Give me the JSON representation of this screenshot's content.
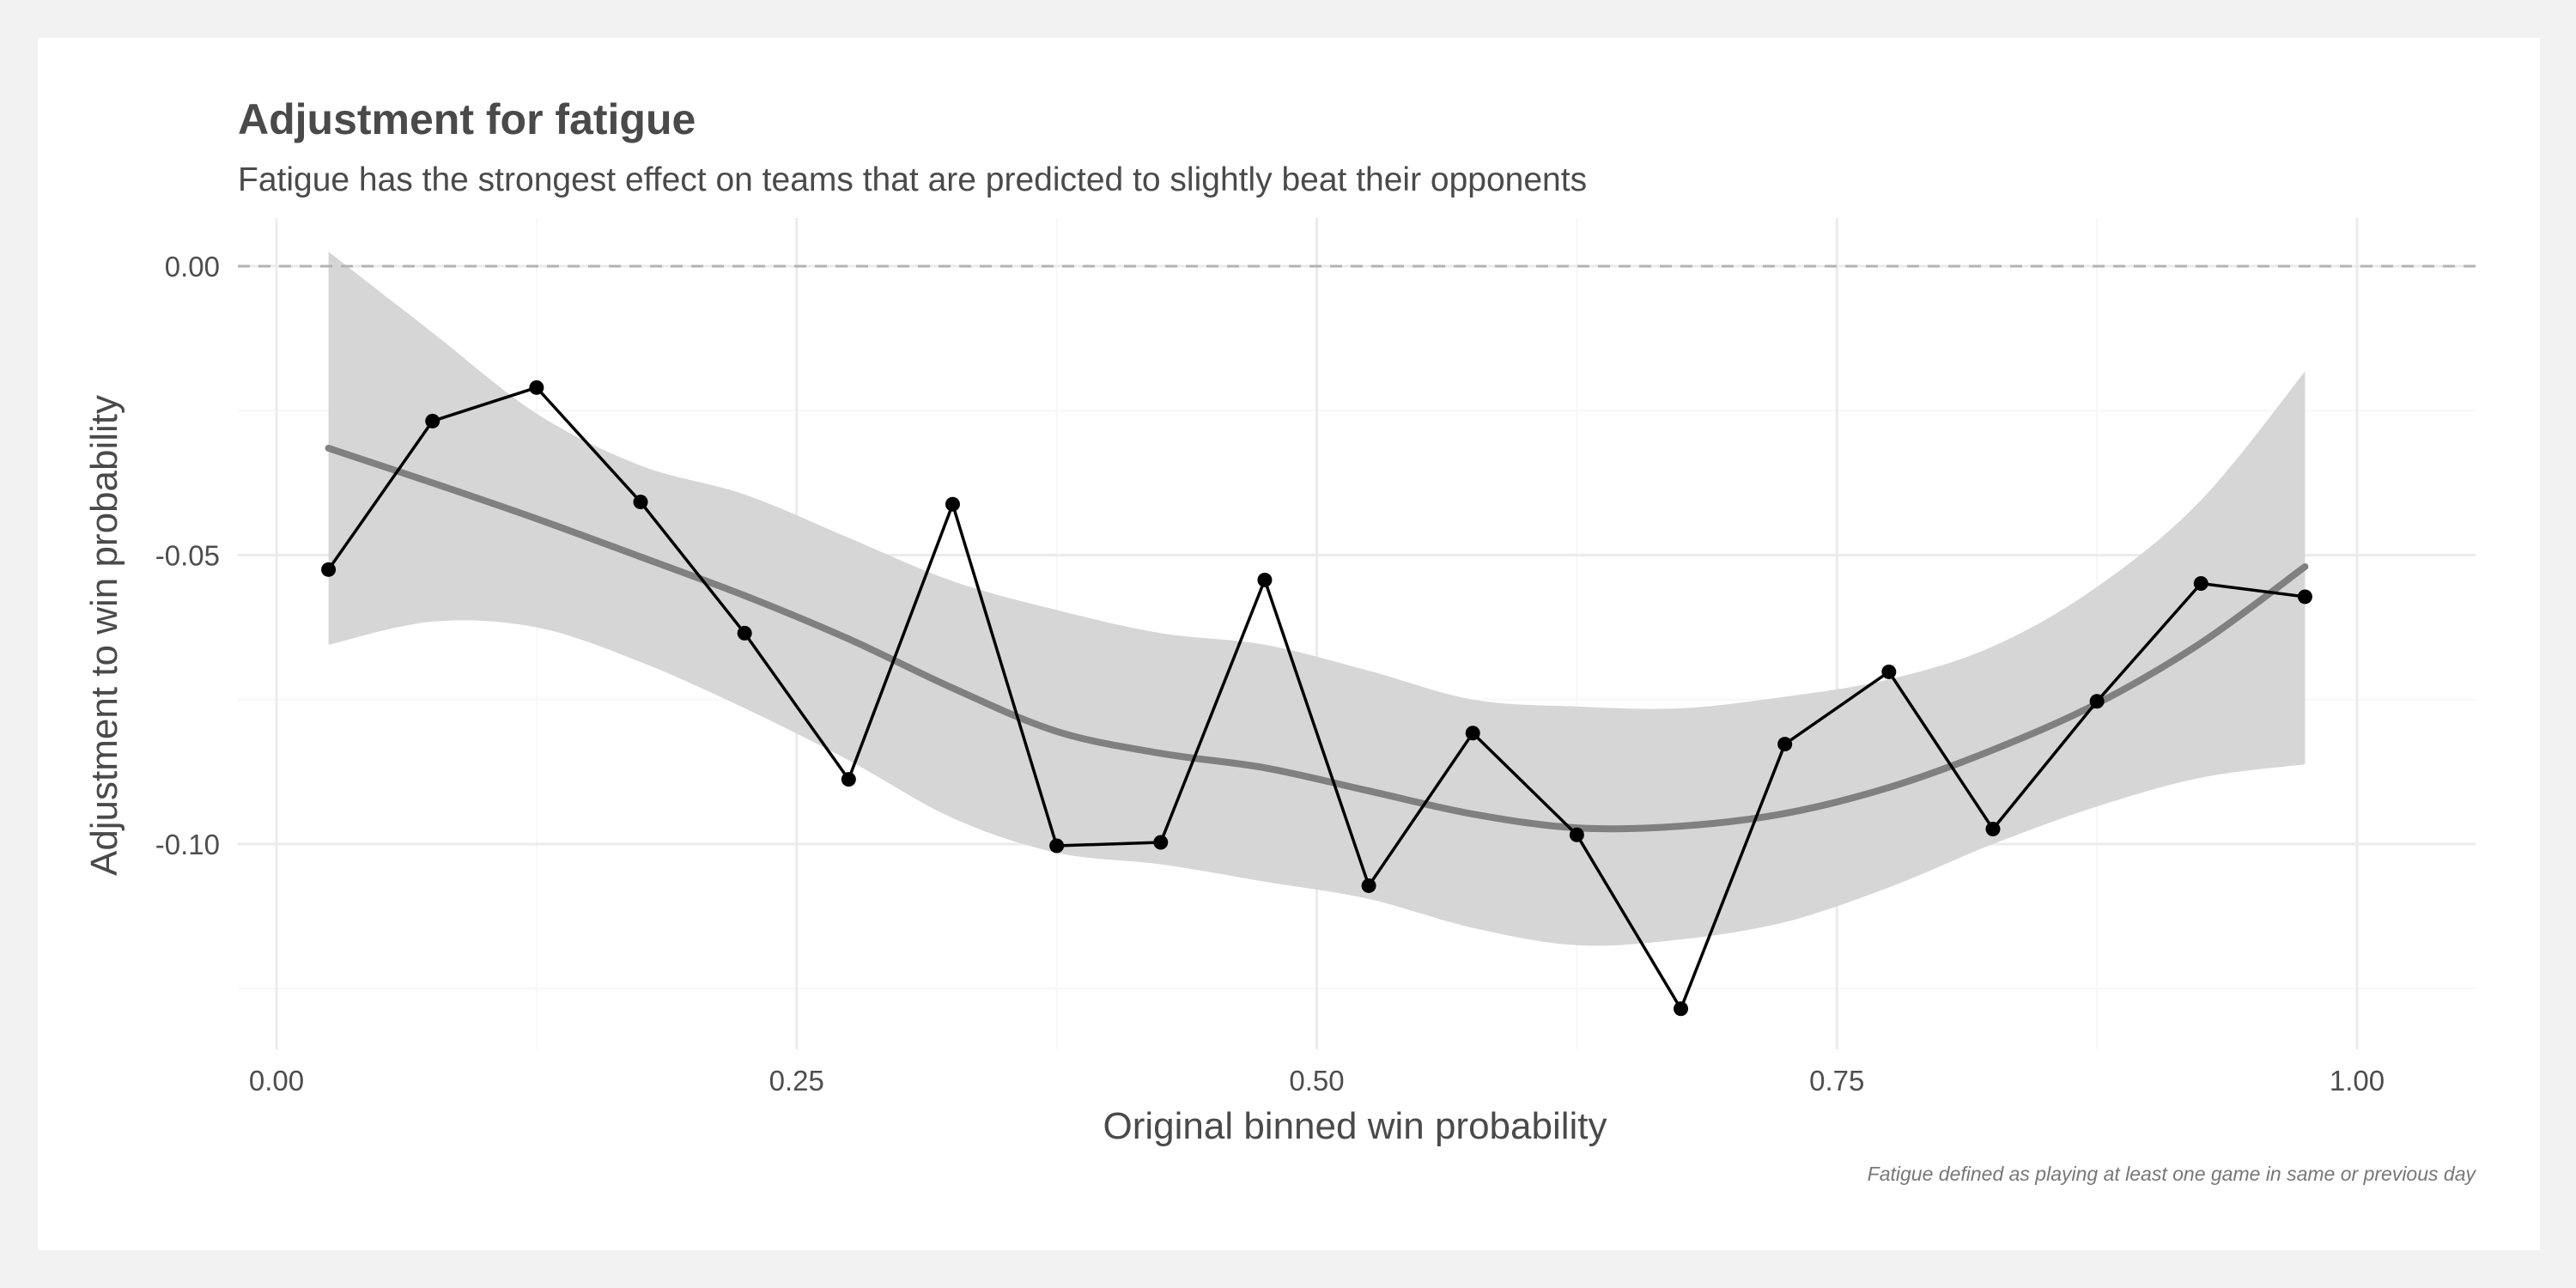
{
  "chart_data": {
    "type": "line",
    "title": "Adjustment for fatigue",
    "subtitle": "Fatigue has the strongest effect on teams that are predicted to slightly beat their opponents",
    "xlabel": "Original binned win probability",
    "ylabel": "Adjustment to win probability",
    "caption": "Fatigue defined as playing at least one game in same or previous day",
    "xlim": [
      0,
      1
    ],
    "ylim": [
      -0.135,
      0.005
    ],
    "x_ticks": [
      0,
      0.25,
      0.5,
      0.75,
      1
    ],
    "x_tick_labels": [
      "0.00",
      "0.25",
      "0.50",
      "0.75",
      "1.00"
    ],
    "y_ticks": [
      0,
      -0.05,
      -0.1
    ],
    "y_tick_labels": [
      "0.00",
      "-0.05",
      "-0.10"
    ],
    "reference_line": {
      "y": 0,
      "style": "dashed"
    },
    "grid": true,
    "series": [
      {
        "style": "points-with-line",
        "color": "#000000",
        "x": [
          0.025,
          0.075,
          0.125,
          0.175,
          0.225,
          0.275,
          0.325,
          0.375,
          0.425,
          0.475,
          0.525,
          0.575,
          0.625,
          0.675,
          0.725,
          0.775,
          0.825,
          0.875,
          0.925,
          0.975
        ],
        "y": [
          -0.0525,
          -0.0268,
          -0.021,
          -0.0408,
          -0.0635,
          -0.0888,
          -0.0412,
          -0.1003,
          -0.0997,
          -0.0543,
          -0.1072,
          -0.0808,
          -0.0984,
          -0.1285,
          -0.0827,
          -0.0702,
          -0.0974,
          -0.0753,
          -0.0549,
          -0.0572
        ]
      },
      {
        "style": "smooth",
        "color": "#808080",
        "x": [
          0.025,
          0.075,
          0.125,
          0.175,
          0.225,
          0.275,
          0.325,
          0.375,
          0.425,
          0.475,
          0.525,
          0.575,
          0.625,
          0.675,
          0.725,
          0.775,
          0.825,
          0.875,
          0.925,
          0.975
        ],
        "y": [
          -0.0315,
          -0.0375,
          -0.0437,
          -0.0503,
          -0.057,
          -0.0645,
          -0.073,
          -0.0805,
          -0.0843,
          -0.0868,
          -0.0908,
          -0.0948,
          -0.0972,
          -0.0969,
          -0.0947,
          -0.0902,
          -0.0837,
          -0.0757,
          -0.0652,
          -0.052
        ],
        "ci_upper": [
          0.0025,
          -0.0115,
          -0.0255,
          -0.0345,
          -0.0395,
          -0.047,
          -0.0545,
          -0.0595,
          -0.0635,
          -0.0655,
          -0.07,
          -0.075,
          -0.0762,
          -0.0765,
          -0.0745,
          -0.0715,
          -0.0658,
          -0.0555,
          -0.0405,
          -0.0182
        ],
        "ci_lower": [
          -0.0655,
          -0.0615,
          -0.0625,
          -0.0685,
          -0.0765,
          -0.0855,
          -0.0955,
          -0.1015,
          -0.1035,
          -0.1065,
          -0.1095,
          -0.1145,
          -0.1175,
          -0.1165,
          -0.1135,
          -0.1075,
          -0.1,
          -0.0935,
          -0.0885,
          -0.0862
        ]
      }
    ]
  }
}
